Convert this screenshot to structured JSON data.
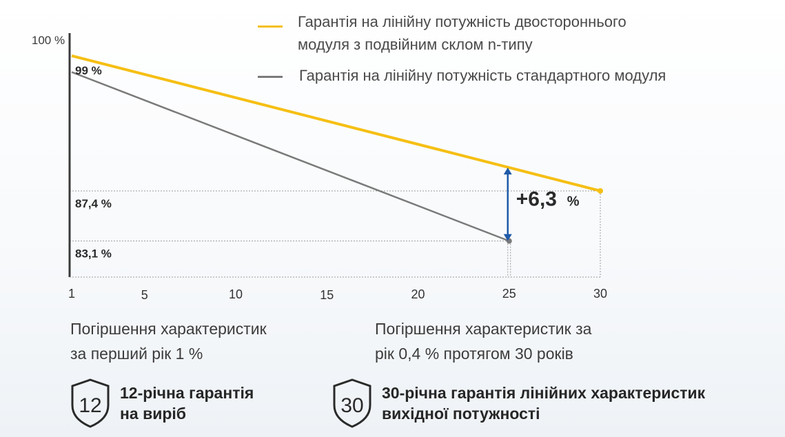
{
  "chart_data": {
    "type": "line",
    "x_ticks": [
      1,
      5,
      10,
      15,
      20,
      25,
      30
    ],
    "xlim": [
      1,
      30
    ],
    "ylim": [
      80,
      100
    ],
    "y_axis_label": "100 %",
    "series": [
      {
        "name": "Гарантія на лінійну потужність двостороннього модуля з подвійним склом n-типу",
        "color": "#f5bf14",
        "x": [
          1,
          30
        ],
        "y": [
          99.0,
          87.4
        ]
      },
      {
        "name": "Гарантія на лінійну потужність стандартного модуля",
        "color": "#7a7a7a",
        "x": [
          1,
          25
        ],
        "y": [
          97.6,
          83.1
        ]
      }
    ],
    "reference_labels": [
      {
        "text": "99 %",
        "value": 99
      },
      {
        "text": "87,4 %",
        "value": 87.4
      },
      {
        "text": "83,1 %",
        "value": 83.1
      }
    ],
    "annotation": {
      "x": 25,
      "y_from": 83.1,
      "y_to": 89.4,
      "number": "+6,3",
      "unit": "%",
      "arrow_color": "#1f5aa8"
    },
    "legend": {
      "placement": "top-right",
      "entries": [
        {
          "text_line1": "Гарантія на лінійну потужність двостороннього",
          "text_line2": "модуля з подвійним склом n-типу",
          "color": "#f5bf14"
        },
        {
          "text_line1": "Гарантія на лінійну потужність стандартного модуля",
          "color": "#7a7a7a"
        }
      ]
    }
  },
  "descriptions": {
    "left_line1": "Погіршення характеристик",
    "left_line2": "за перший рік 1 %",
    "right_line1": "Погіршення характеристик за",
    "right_line2": "рік 0,4 % протягом 30 років"
  },
  "warranties": [
    {
      "badge": "12",
      "line1": "12-річна гарантія",
      "line2": "на виріб"
    },
    {
      "badge": "30",
      "line1": "30-річна гарантія лінійних характеристик",
      "line2": "вихідної потужності"
    }
  ]
}
